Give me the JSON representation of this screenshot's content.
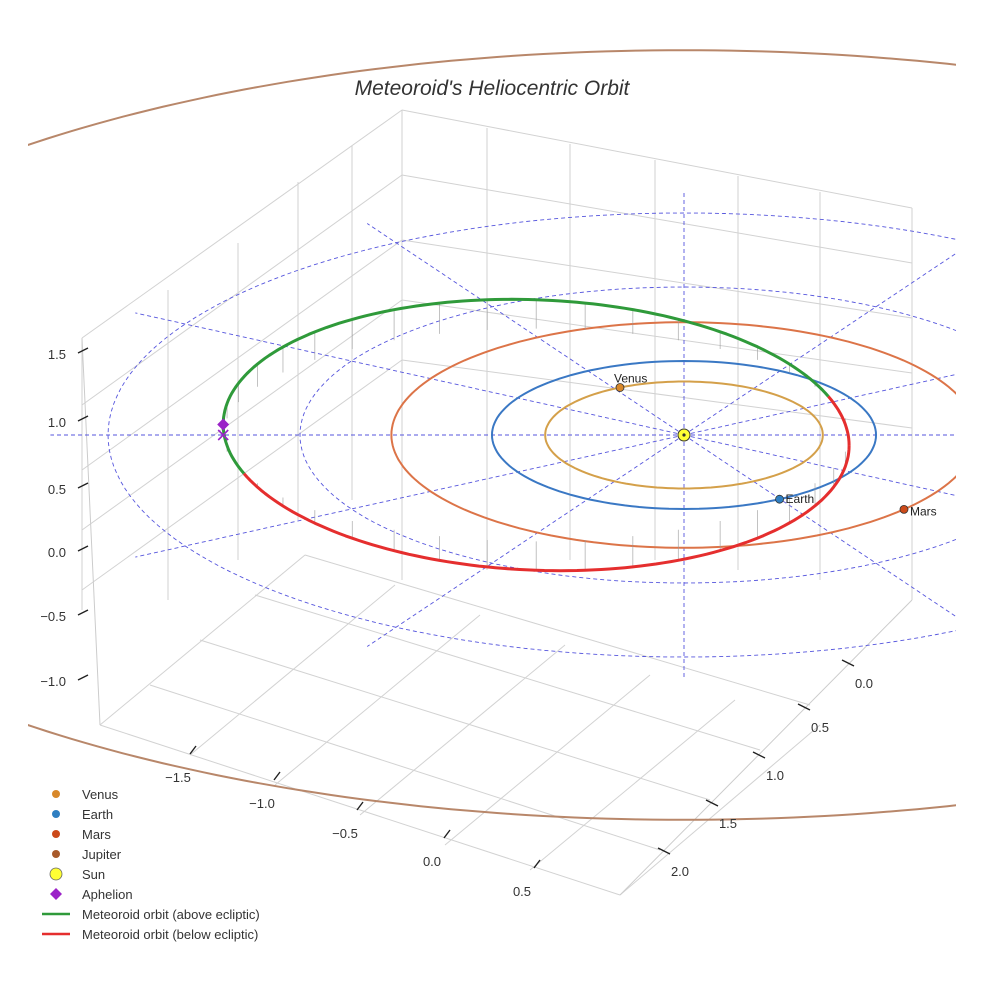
{
  "chart_data": {
    "type": "3d-line",
    "title": "Meteoroid's Heliocentric Orbit",
    "z_ticks": [
      "1.5",
      "1.0",
      "0.5",
      "0.0",
      "−0.5",
      "−1.0"
    ],
    "x_ticks": [
      "−1.5",
      "−1.0",
      "−0.5",
      "0.0",
      "0.5"
    ],
    "y_ticks": [
      "0.0",
      "0.5",
      "1.0",
      "1.5",
      "2.0"
    ],
    "colors": {
      "venus": "#d4a04a",
      "earth": "#3a78c4",
      "mars": "#dc7448",
      "jupiter": "#b8876a",
      "sun": "#ffff33",
      "aphelion": "#9b23c8",
      "above": "#2f9a3a",
      "below": "#e52e2e",
      "grid_circle": "#5555dd"
    },
    "planets": [
      {
        "name": "Venus",
        "color": "#d8882a",
        "label": "Venus"
      },
      {
        "name": "Earth",
        "color": "#2f7fc2",
        "label": "Earth"
      },
      {
        "name": "Mars",
        "color": "#cc4a1a",
        "label": "Mars"
      }
    ],
    "orbits_au": {
      "venus": 0.723,
      "earth": 1.0,
      "mars": 1.524,
      "jupiter": 5.2,
      "reference_circles": [
        1.0,
        2.0,
        3.0
      ]
    },
    "meteoroid": {
      "perihelion_au": 0.86,
      "aphelion_au": 2.4,
      "max_height_au": 0.22,
      "aphelion_marker": "Aphelion"
    },
    "legend": [
      {
        "label": "Venus",
        "kind": "dot",
        "color": "#d8882a"
      },
      {
        "label": "Earth",
        "kind": "dot",
        "color": "#2f7fc2"
      },
      {
        "label": "Mars",
        "kind": "dot",
        "color": "#cc4a1a"
      },
      {
        "label": "Jupiter",
        "kind": "dot",
        "color": "#a85a2a"
      },
      {
        "label": "Sun",
        "kind": "sun",
        "color": "#ffff33"
      },
      {
        "label": "Aphelion",
        "kind": "diamond",
        "color": "#9b23c8"
      },
      {
        "label": "Meteoroid orbit (above ecliptic)",
        "kind": "line",
        "color": "#2f9a3a"
      },
      {
        "label": "Meteoroid orbit (below ecliptic)",
        "kind": "line",
        "color": "#e52e2e"
      }
    ]
  }
}
